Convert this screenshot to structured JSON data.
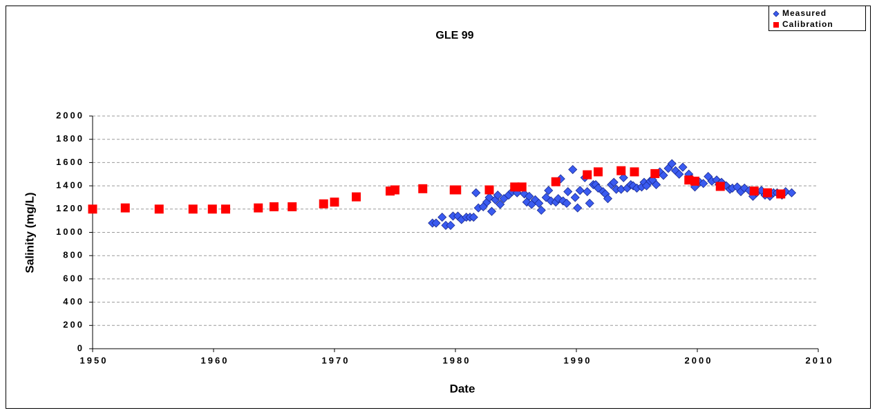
{
  "chart_data": {
    "type": "scatter",
    "title": "GLE 99",
    "x_label": "Date",
    "y_label": "Salinity (mg/L)",
    "xlim": [
      1950,
      2010
    ],
    "xticks": [
      1950,
      1960,
      1970,
      1980,
      1990,
      2000,
      2010
    ],
    "ylim": [
      0,
      2000
    ],
    "yticks": [
      0,
      200,
      400,
      600,
      800,
      1000,
      1200,
      1400,
      1600,
      1800,
      2000
    ],
    "grid": true,
    "legend": "top-right",
    "series": [
      {
        "name": "Measured",
        "color": "#3a5bf0",
        "marker": "diamond",
        "x": [
          1978.1,
          1978.4,
          1978.9,
          1979.2,
          1979.6,
          1979.8,
          1980.2,
          1980.5,
          1980.9,
          1981.2,
          1981.5,
          1981.7,
          1981.9,
          1982.3,
          1982.6,
          1982.8,
          1983.0,
          1983.3,
          1983.5,
          1983.7,
          1984.0,
          1984.4,
          1984.7,
          1985.1,
          1985.3,
          1985.7,
          1985.9,
          1986.1,
          1986.3,
          1986.6,
          1986.9,
          1987.1,
          1987.5,
          1987.7,
          1987.9,
          1988.3,
          1988.5,
          1988.7,
          1988.9,
          1989.2,
          1989.3,
          1989.7,
          1989.9,
          1990.1,
          1990.3,
          1990.7,
          1990.9,
          1991.1,
          1991.4,
          1991.6,
          1991.8,
          1992.2,
          1992.4,
          1992.6,
          1992.9,
          1993.1,
          1993.3,
          1993.7,
          1993.9,
          1994.2,
          1994.5,
          1994.7,
          1995.0,
          1995.4,
          1995.6,
          1995.8,
          1996.1,
          1996.3,
          1996.6,
          1996.9,
          1997.2,
          1997.6,
          1997.9,
          1998.2,
          1998.5,
          1998.8,
          1999.3,
          1999.5,
          1999.8,
          2000.2,
          2000.5,
          2000.9,
          2001.2,
          2001.6,
          2001.8,
          2002.0,
          2002.4,
          2002.7,
          2002.9,
          2003.3,
          2003.6,
          2003.9,
          2004.3,
          2004.6,
          2004.9,
          2005.3,
          2005.6,
          2006.0,
          2006.3,
          2006.6,
          2007.0,
          2007.3,
          2007.8
        ],
        "values": [
          1080,
          1080,
          1130,
          1060,
          1060,
          1140,
          1140,
          1110,
          1130,
          1130,
          1130,
          1340,
          1210,
          1220,
          1260,
          1300,
          1180,
          1280,
          1320,
          1240,
          1290,
          1320,
          1350,
          1340,
          1390,
          1330,
          1260,
          1310,
          1240,
          1280,
          1250,
          1190,
          1300,
          1360,
          1270,
          1260,
          1290,
          1460,
          1270,
          1250,
          1350,
          1540,
          1300,
          1210,
          1360,
          1470,
          1350,
          1250,
          1410,
          1410,
          1380,
          1350,
          1330,
          1290,
          1410,
          1430,
          1370,
          1370,
          1470,
          1380,
          1410,
          1400,
          1380,
          1390,
          1430,
          1400,
          1440,
          1450,
          1410,
          1520,
          1490,
          1550,
          1590,
          1530,
          1500,
          1560,
          1500,
          1460,
          1390,
          1430,
          1420,
          1480,
          1440,
          1450,
          1410,
          1430,
          1400,
          1370,
          1380,
          1390,
          1350,
          1380,
          1360,
          1310,
          1340,
          1360,
          1320,
          1310,
          1340,
          1340,
          1320,
          1350,
          1340
        ]
      },
      {
        "name": "Calibration",
        "color": "#ff0000",
        "marker": "square",
        "x": [
          1950.0,
          1952.7,
          1955.5,
          1958.3,
          1959.9,
          1961.0,
          1963.7,
          1965.0,
          1966.5,
          1969.1,
          1970.0,
          1971.8,
          1974.6,
          1975.0,
          1977.3,
          1979.9,
          1980.1,
          1982.8,
          1984.9,
          1985.5,
          1988.3,
          1990.9,
          1991.8,
          1993.7,
          1994.8,
          1996.5,
          1999.3,
          1999.8,
          2001.9,
          2004.7,
          2005.8,
          2006.9
        ],
        "values": [
          1200,
          1210,
          1200,
          1200,
          1200,
          1200,
          1210,
          1220,
          1220,
          1245,
          1260,
          1305,
          1355,
          1365,
          1375,
          1365,
          1365,
          1365,
          1390,
          1390,
          1435,
          1495,
          1520,
          1530,
          1520,
          1505,
          1450,
          1440,
          1395,
          1355,
          1340,
          1330
        ]
      }
    ]
  }
}
